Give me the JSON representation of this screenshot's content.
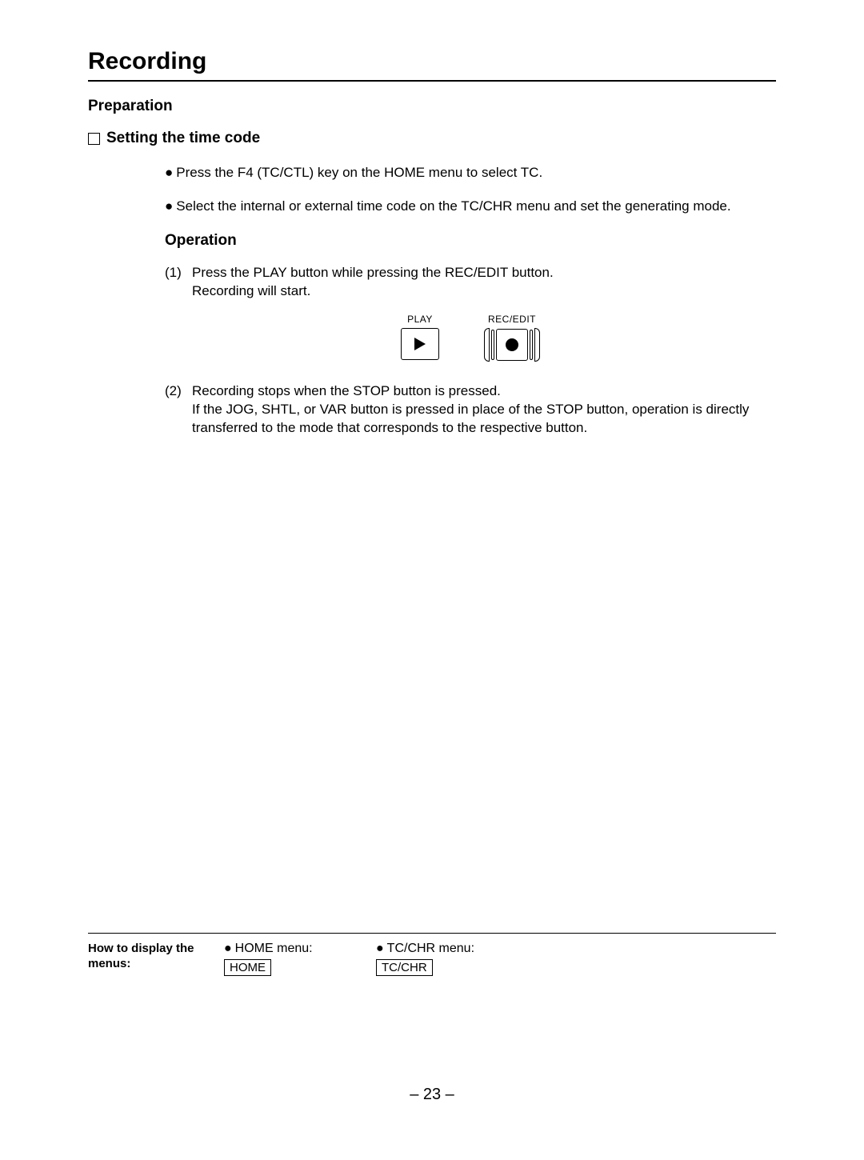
{
  "title": "Recording",
  "preparation_heading": "Preparation",
  "setting_heading": "Setting the time code",
  "bullet1": "Press the F4 (TC/CTL) key on the HOME menu to select TC.",
  "bullet2": "Select the internal or external time code on the TC/CHR menu and set the generating mode.",
  "operation_heading": "Operation",
  "step1": {
    "num": "(1)",
    "line1": "Press the PLAY button while pressing the REC/EDIT button.",
    "line2": "Recording will start."
  },
  "buttons": {
    "play_label": "PLAY",
    "rec_label": "REC/EDIT"
  },
  "step2": {
    "num": "(2)",
    "line1": "Recording stops when the STOP button is pressed.",
    "line2": "If the JOG, SHTL, or VAR button is pressed in place of the STOP button, operation is directly transferred to the mode that corresponds to the respective button."
  },
  "footer": {
    "heading": "How to display the menus:",
    "item1_label": "HOME menu:",
    "item1_box": "HOME",
    "item2_label": "TC/CHR menu:",
    "item2_box": "TC/CHR"
  },
  "page_number": "– 23 –"
}
